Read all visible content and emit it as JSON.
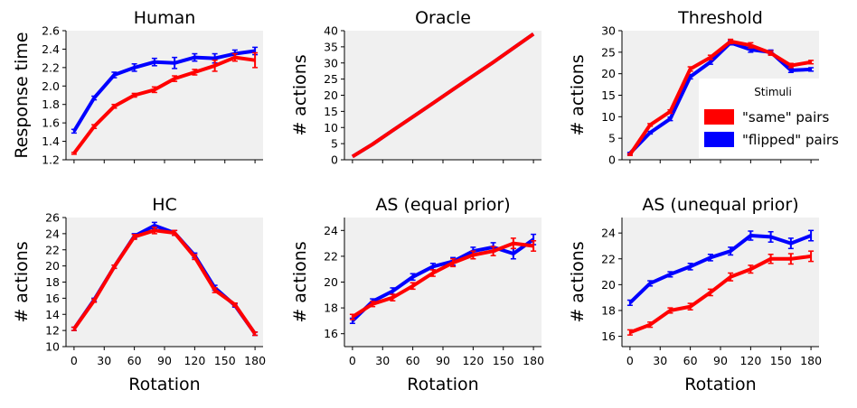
{
  "chart_data": [
    {
      "type": "line",
      "title": "Human",
      "xlabel": "",
      "ylabel": "Response time",
      "xlim": [
        -8,
        188
      ],
      "ylim": [
        1.2,
        2.6
      ],
      "x": [
        0,
        20,
        40,
        60,
        80,
        100,
        120,
        140,
        160,
        180
      ],
      "xticks": [
        0,
        30,
        60,
        90,
        120,
        150,
        180
      ],
      "yticks": [
        1.2,
        1.4,
        1.6,
        1.8,
        2.0,
        2.2,
        2.4,
        2.6
      ],
      "ytick_labels": [
        "1.2",
        "1.4",
        "1.6",
        "1.8",
        "2.0",
        "2.2",
        "2.4",
        "2.6"
      ],
      "series": [
        {
          "name": "\"flipped\" pairs",
          "color": "#0000ff",
          "values": [
            1.51,
            1.87,
            2.12,
            2.2,
            2.26,
            2.25,
            2.31,
            2.3,
            2.35,
            2.38
          ],
          "errors": [
            0.02,
            0.02,
            0.03,
            0.04,
            0.04,
            0.06,
            0.04,
            0.05,
            0.04,
            0.04
          ]
        },
        {
          "name": "\"same\" pairs",
          "color": "#ff0000",
          "values": [
            1.27,
            1.56,
            1.78,
            1.9,
            1.96,
            2.08,
            2.15,
            2.22,
            2.31,
            2.28
          ],
          "errors": [
            0.01,
            0.02,
            0.02,
            0.02,
            0.03,
            0.03,
            0.03,
            0.06,
            0.04,
            0.08
          ]
        }
      ]
    },
    {
      "type": "line",
      "title": "Oracle",
      "xlabel": "",
      "ylabel": "# actions",
      "xlim": [
        -8,
        188
      ],
      "ylim": [
        0,
        40
      ],
      "x": [
        0,
        20,
        40,
        60,
        80,
        100,
        120,
        140,
        160,
        180
      ],
      "xticks": [
        0,
        30,
        60,
        90,
        120,
        150,
        180
      ],
      "yticks": [
        0,
        5,
        10,
        15,
        20,
        25,
        30,
        35,
        40
      ],
      "ytick_labels": [
        "0",
        "5",
        "10",
        "15",
        "20",
        "25",
        "30",
        "35",
        "40"
      ],
      "series": [
        {
          "name": "\"flipped\" pairs",
          "color": "#0000ff",
          "values": [
            1,
            4.8,
            9.1,
            13.3,
            17.5,
            21.8,
            26,
            30.2,
            34.6,
            39
          ],
          "errors": [
            0,
            0,
            0,
            0,
            0,
            0,
            0,
            0,
            0,
            0
          ]
        },
        {
          "name": "\"same\" pairs",
          "color": "#ff0000",
          "values": [
            1,
            4.8,
            9.1,
            13.3,
            17.5,
            21.8,
            26,
            30.2,
            34.6,
            39
          ],
          "errors": [
            0,
            0,
            0,
            0,
            0,
            0,
            0,
            0,
            0,
            0
          ]
        }
      ]
    },
    {
      "type": "line",
      "title": "Threshold",
      "xlabel": "",
      "ylabel": "# actions",
      "xlim": [
        -8,
        188
      ],
      "ylim": [
        0,
        30
      ],
      "x": [
        0,
        20,
        40,
        60,
        80,
        100,
        120,
        140,
        160,
        180
      ],
      "xticks": [
        0,
        30,
        60,
        90,
        120,
        150,
        180
      ],
      "yticks": [
        0,
        5,
        10,
        15,
        20,
        25,
        30
      ],
      "ytick_labels": [
        "0",
        "5",
        "10",
        "15",
        "20",
        "25",
        "30"
      ],
      "series": [
        {
          "name": "\"flipped\" pairs",
          "color": "#0000ff",
          "values": [
            1.5,
            6.3,
            9.5,
            19.3,
            22.7,
            27.2,
            25.6,
            25,
            20.8,
            21
          ],
          "errors": [
            0.2,
            0.3,
            0.4,
            0.5,
            0.5,
            0.5,
            0.6,
            0.5,
            0.5,
            0.4
          ]
        },
        {
          "name": "\"same\" pairs",
          "color": "#ff0000",
          "values": [
            1.2,
            8.1,
            11.2,
            21.1,
            23.8,
            27.5,
            26.6,
            24.8,
            21.9,
            22.7
          ],
          "errors": [
            0.2,
            0.3,
            0.4,
            0.5,
            0.5,
            0.5,
            0.6,
            0.5,
            0.5,
            0.4
          ]
        }
      ],
      "legend": {
        "title": "Stimuli",
        "entries": [
          "\"same\" pairs",
          "\"flipped\" pairs"
        ],
        "colors": [
          "#ff0000",
          "#0000ff"
        ],
        "placement": "right"
      }
    },
    {
      "type": "line",
      "title": "HC",
      "xlabel": "Rotation",
      "ylabel": "# actions",
      "xlim": [
        -8,
        188
      ],
      "ylim": [
        10,
        26
      ],
      "x": [
        0,
        20,
        40,
        60,
        80,
        100,
        120,
        140,
        160,
        180
      ],
      "xticks": [
        0,
        30,
        60,
        90,
        120,
        150,
        180
      ],
      "yticks": [
        10,
        12,
        14,
        16,
        18,
        20,
        22,
        24,
        26
      ],
      "ytick_labels": [
        "10",
        "12",
        "14",
        "16",
        "18",
        "20",
        "22",
        "24",
        "26"
      ],
      "series": [
        {
          "name": "\"flipped\" pairs",
          "color": "#0000ff",
          "values": [
            12.2,
            15.8,
            19.9,
            23.7,
            25,
            24.1,
            21.3,
            17.3,
            15.1,
            11.6
          ],
          "errors": [
            0.2,
            0.2,
            0.2,
            0.3,
            0.4,
            0.3,
            0.3,
            0.3,
            0.2,
            0.2
          ]
        },
        {
          "name": "\"same\" pairs",
          "color": "#ff0000",
          "values": [
            12.2,
            15.7,
            19.9,
            23.6,
            24.4,
            24.1,
            21.1,
            17,
            15.2,
            11.6
          ],
          "errors": [
            0.2,
            0.2,
            0.2,
            0.3,
            0.4,
            0.3,
            0.3,
            0.3,
            0.2,
            0.2
          ]
        }
      ]
    },
    {
      "type": "line",
      "title": "AS (equal prior)",
      "xlabel": "Rotation",
      "ylabel": "# actions",
      "xlim": [
        -8,
        188
      ],
      "ylim": [
        15,
        25
      ],
      "x": [
        0,
        20,
        40,
        60,
        80,
        100,
        120,
        140,
        160,
        180
      ],
      "xticks": [
        0,
        30,
        60,
        90,
        120,
        150,
        180
      ],
      "yticks": [
        16,
        18,
        20,
        22,
        24
      ],
      "ytick_labels": [
        "16",
        "18",
        "20",
        "22",
        "24"
      ],
      "series": [
        {
          "name": "\"flipped\" pairs",
          "color": "#0000ff",
          "values": [
            17,
            18.5,
            19.3,
            20.4,
            21.2,
            21.6,
            22.4,
            22.7,
            22.2,
            23.3
          ],
          "errors": [
            0.2,
            0.2,
            0.25,
            0.25,
            0.25,
            0.3,
            0.3,
            0.35,
            0.4,
            0.4
          ]
        },
        {
          "name": "\"same\" pairs",
          "color": "#ff0000",
          "values": [
            17.3,
            18.3,
            18.8,
            19.7,
            20.7,
            21.5,
            22.1,
            22.4,
            23,
            22.8
          ],
          "errors": [
            0.2,
            0.2,
            0.25,
            0.25,
            0.25,
            0.3,
            0.3,
            0.35,
            0.4,
            0.4
          ]
        }
      ]
    },
    {
      "type": "line",
      "title": "AS (unequal prior)",
      "xlabel": "Rotation",
      "ylabel": "# actions",
      "xlim": [
        -8,
        188
      ],
      "ylim": [
        15.2,
        25.2
      ],
      "x": [
        0,
        20,
        40,
        60,
        80,
        100,
        120,
        140,
        160,
        180
      ],
      "xticks": [
        0,
        30,
        60,
        90,
        120,
        150,
        180
      ],
      "yticks": [
        16,
        18,
        20,
        22,
        24
      ],
      "ytick_labels": [
        "16",
        "18",
        "20",
        "22",
        "24"
      ],
      "series": [
        {
          "name": "\"flipped\" pairs",
          "color": "#0000ff",
          "values": [
            18.6,
            20.1,
            20.8,
            21.4,
            22.1,
            22.6,
            23.8,
            23.7,
            23.2,
            23.8
          ],
          "errors": [
            0.2,
            0.2,
            0.2,
            0.25,
            0.25,
            0.3,
            0.35,
            0.4,
            0.4,
            0.4
          ]
        },
        {
          "name": "\"same\" pairs",
          "color": "#ff0000",
          "values": [
            16.3,
            16.9,
            18,
            18.3,
            19.4,
            20.6,
            21.2,
            22,
            22,
            22.2
          ],
          "errors": [
            0.2,
            0.2,
            0.2,
            0.25,
            0.25,
            0.3,
            0.3,
            0.35,
            0.4,
            0.4
          ]
        }
      ]
    }
  ]
}
